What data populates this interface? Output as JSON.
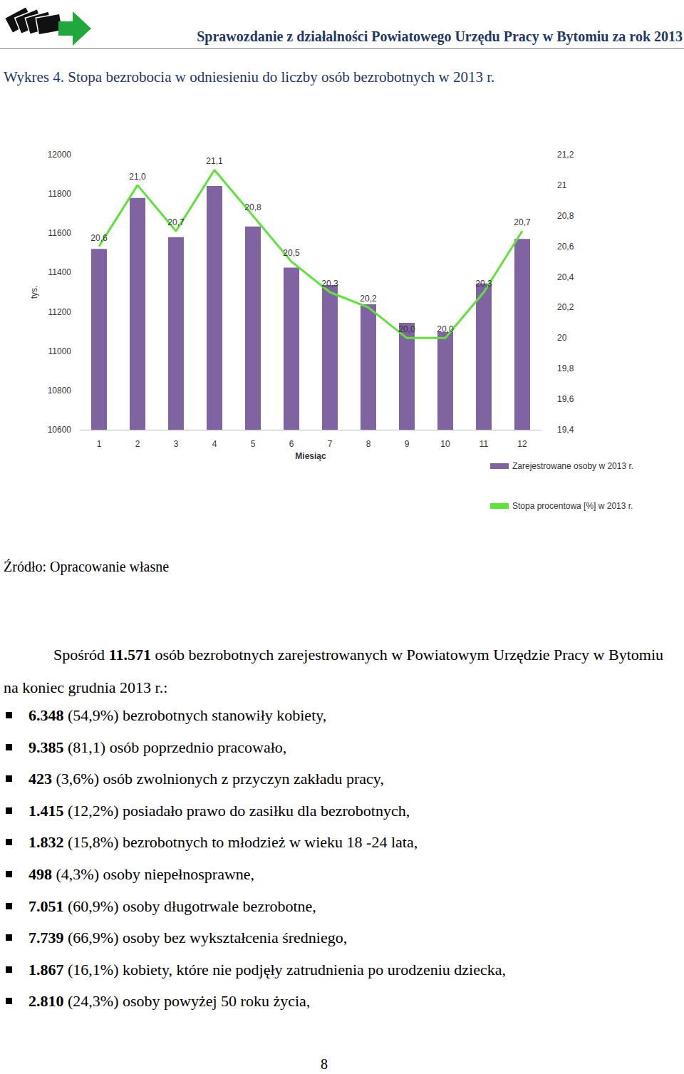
{
  "header": "Sprawozdanie z działalności Powiatowego Urzędu Pracy w Bytomiu za rok 2013",
  "figure_title": "Wykres 4. Stopa bezrobocia w odniesieniu do liczby osób bezrobotnych w 2013 r.",
  "chart_data": {
    "type": "bar",
    "x_label": "Miesiąc",
    "y_label": "tys.",
    "categories": [
      "1",
      "2",
      "3",
      "4",
      "5",
      "6",
      "7",
      "8",
      "9",
      "10",
      "11",
      "12"
    ],
    "series": [
      {
        "name": "Zarejestrowane osoby w 2013 r.",
        "type": "bar",
        "color": "#8064a2",
        "values": [
          11520,
          11780,
          11580,
          11840,
          11635,
          11425,
          11336,
          11238,
          11144,
          11097,
          11344,
          11571
        ]
      },
      {
        "name": "Stopa procentowa [%] w 2013 r.",
        "type": "line",
        "axis": "y2",
        "color": "#5fe23a",
        "line_style": "solid",
        "marker": "none",
        "values": [
          20.6,
          21.0,
          20.7,
          21.1,
          20.8,
          20.5,
          20.3,
          20.2,
          20.0,
          20.0,
          20.3,
          20.7
        ],
        "value_labels": [
          "20,6",
          "21,0",
          "20,7",
          "21,1",
          "20,8",
          "20,5",
          "20,3",
          "20,2",
          "20,0",
          "20,0",
          "20,3",
          "20,7"
        ]
      }
    ],
    "ylim": [
      10600,
      12000
    ],
    "yticks": [
      10600,
      10800,
      11000,
      11200,
      11400,
      11600,
      11800,
      12000
    ],
    "y2lim": [
      19.4,
      21.2
    ],
    "y2ticks": [
      {
        "value": 19.4,
        "label": "19,4"
      },
      {
        "value": 19.6,
        "label": "19,6"
      },
      {
        "value": 19.8,
        "label": "19,8"
      },
      20,
      {
        "value": 20.2,
        "label": "20,2"
      },
      {
        "value": 20.4,
        "label": "20,4"
      },
      {
        "value": 20.6,
        "label": "20,6"
      },
      {
        "value": 20.8,
        "label": "20,8"
      },
      21,
      {
        "value": 21.2,
        "label": "21,2"
      }
    ],
    "grid": false,
    "data_labels": true,
    "legend": "bottom-right"
  },
  "source": "Źródło: Opracowanie własne",
  "paragraph": {
    "before": "Spośród ",
    "bold": "11.571",
    "after": " osób bezrobotnych zarejestrowanych w Powiatowym Urzędzie Pracy w Bytomiu na koniec grudnia 2013 r.:"
  },
  "bullets": [
    {
      "bold": "6.348",
      "text": " (54,9%) bezrobotnych stanowiły kobiety,"
    },
    {
      "bold": "9.385",
      "text": " (81,1) osób poprzednio pracowało,"
    },
    {
      "bold": "423",
      "text": " (3,6%)  osób zwolnionych z przyczyn zakładu pracy,"
    },
    {
      "bold": "1.415",
      "text": " (12,2%) posiadało prawo do zasiłku dla bezrobotnych,"
    },
    {
      "bold": "1.832",
      "text": " (15,8%) bezrobotnych to młodzież w wieku 18 -24 lata,"
    },
    {
      "bold": "498",
      "text": " (4,3%)  osoby niepełnosprawne,"
    },
    {
      "bold": "7.051",
      "text": " (60,9%) osoby długotrwale bezrobotne,"
    },
    {
      "bold": "7.739",
      "text": " (66,9%) osoby bez wykształcenia średniego,"
    },
    {
      "bold": "1.867",
      "text": " (16,1%) kobiety, które nie podjęły zatrudnienia po urodzeniu dziecka,"
    },
    {
      "bold": "2.810",
      "text": " (24,3%) osoby powyżej 50 roku życia,"
    }
  ],
  "page_number": "8"
}
